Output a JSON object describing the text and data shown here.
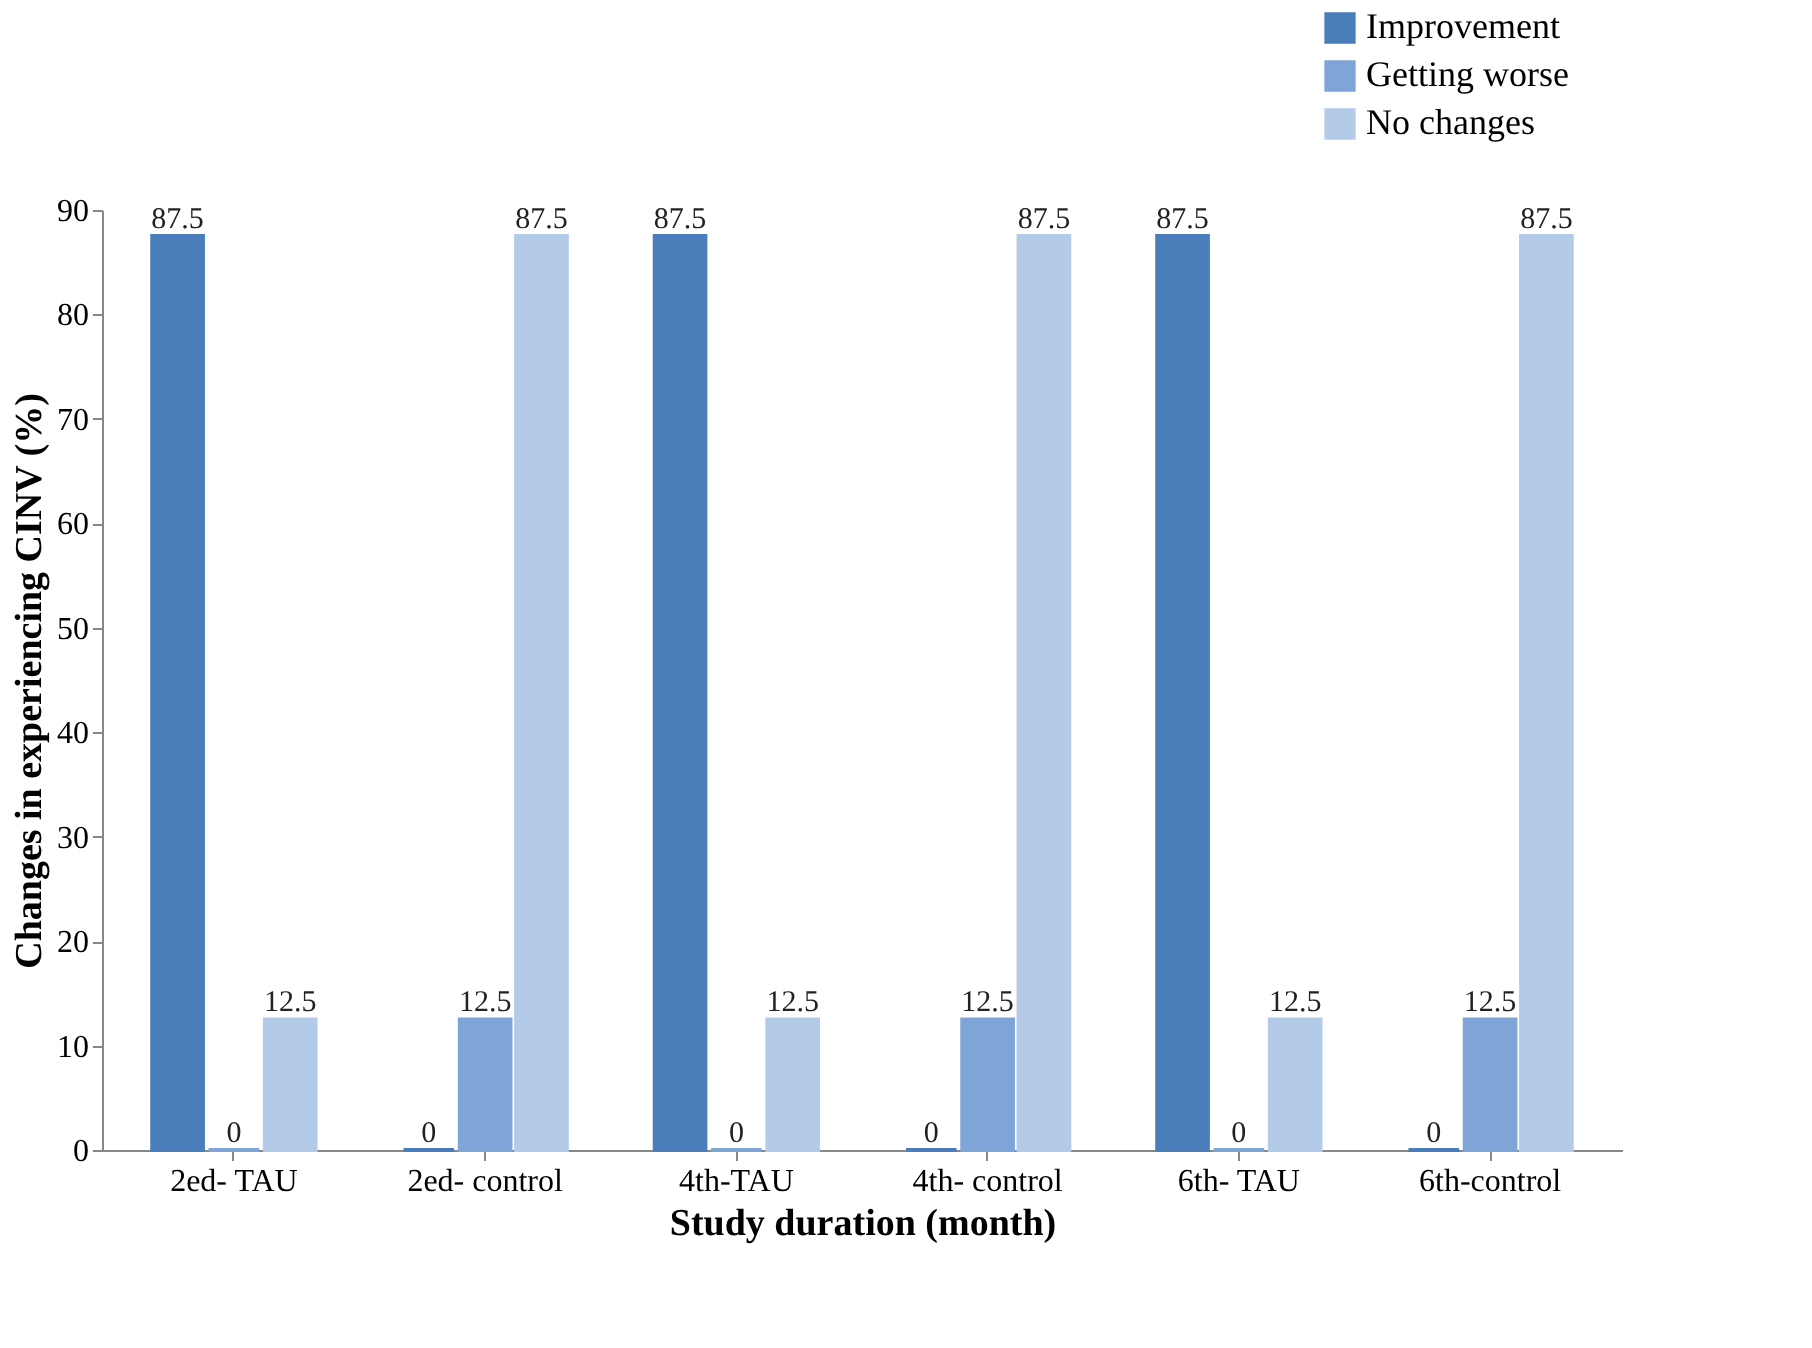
{
  "chart_data": {
    "type": "bar",
    "xlabel": "Study duration (month)",
    "ylabel": "Changes in experiencing CINV (%)",
    "categories": [
      "2ed- TAU",
      "2ed- control",
      "4th-TAU",
      "4th- control",
      "6th- TAU",
      "6th-control"
    ],
    "series": [
      {
        "name": "Improvement",
        "color": "#4a7ebb",
        "values": [
          87.5,
          0,
          87.5,
          0,
          87.5,
          0
        ]
      },
      {
        "name": "Getting worse",
        "color": "#7ea4d8",
        "values": [
          0,
          12.5,
          0,
          12.5,
          0,
          12.5
        ]
      },
      {
        "name": "No changes",
        "color": "#b3cbe8",
        "values": [
          12.5,
          87.5,
          12.5,
          87.5,
          12.5,
          87.5
        ]
      }
    ],
    "ylim": [
      0,
      90
    ],
    "yticks": [
      0,
      10,
      20,
      30,
      40,
      50,
      60,
      70,
      80,
      90
    ],
    "data_labels": true,
    "grid": false,
    "legend": "top right"
  }
}
